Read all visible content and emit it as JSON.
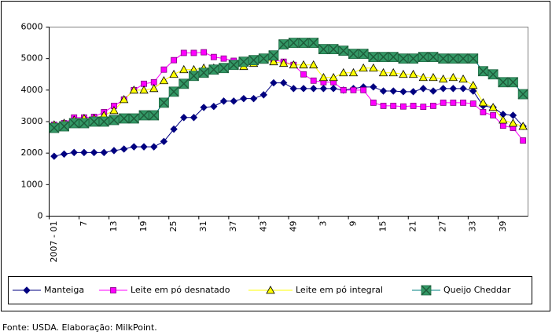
{
  "chart_data": {
    "type": "line",
    "categories": [
      "2007 - 01",
      null,
      null,
      "7",
      null,
      null,
      "13",
      null,
      null,
      "19",
      null,
      null,
      "25",
      null,
      null,
      "31",
      null,
      null,
      "37",
      null,
      null,
      "43",
      null,
      null,
      "49",
      null,
      null,
      "3",
      null,
      null,
      "9",
      null,
      null,
      "15",
      null,
      null,
      "21",
      null,
      null,
      "27",
      null,
      null,
      "33",
      null,
      null,
      "39",
      null,
      null
    ],
    "series": [
      {
        "name": "Manteiga",
        "color": "#000080",
        "marker": "diamond",
        "values": [
          1900,
          1970,
          2020,
          2020,
          2020,
          2020,
          2080,
          2130,
          2200,
          2200,
          2200,
          2370,
          2760,
          3130,
          3130,
          3450,
          3480,
          3650,
          3650,
          3730,
          3730,
          3850,
          4230,
          4230,
          4050,
          4050,
          4050,
          4050,
          4050,
          4000,
          4050,
          4100,
          4100,
          3970,
          3970,
          3950,
          3950,
          4050,
          3970,
          4050,
          4050,
          4050,
          3970,
          3500,
          3450,
          3230,
          3200,
          2850
        ]
      },
      {
        "name": "Leite em pó desnatado",
        "color": "#ff00ff",
        "marker": "square",
        "values": [
          2900,
          2950,
          3130,
          3130,
          3150,
          3300,
          3500,
          3700,
          4000,
          4200,
          4250,
          4650,
          4950,
          5180,
          5180,
          5200,
          5050,
          5000,
          4930,
          4850,
          4900,
          4950,
          4950,
          4900,
          4800,
          4500,
          4300,
          4250,
          4250,
          4000,
          4000,
          4000,
          3600,
          3500,
          3500,
          3480,
          3500,
          3470,
          3500,
          3600,
          3600,
          3600,
          3570,
          3300,
          3200,
          2870,
          2800,
          2400
        ]
      },
      {
        "name": "Leite em pó integral",
        "color": "#ffff00",
        "marker": "triangle",
        "values": [
          2900,
          2950,
          3050,
          3100,
          3100,
          3200,
          3350,
          3700,
          4000,
          4000,
          4050,
          4300,
          4500,
          4650,
          4650,
          4700,
          4700,
          4700,
          4800,
          4750,
          4850,
          4950,
          4900,
          4850,
          4800,
          4800,
          4800,
          4400,
          4400,
          4550,
          4550,
          4700,
          4700,
          4550,
          4550,
          4500,
          4500,
          4400,
          4400,
          4350,
          4400,
          4350,
          4150,
          3600,
          3450,
          3050,
          2950,
          2850
        ]
      },
      {
        "name": "Queijo Cheddar",
        "color": "#008080",
        "marker": "xbox",
        "values": [
          2800,
          2850,
          2950,
          2950,
          3000,
          3000,
          3050,
          3100,
          3100,
          3200,
          3200,
          3600,
          3950,
          4200,
          4450,
          4550,
          4650,
          4700,
          4800,
          4900,
          4950,
          5000,
          5100,
          5450,
          5500,
          5500,
          5500,
          5300,
          5300,
          5250,
          5150,
          5150,
          5050,
          5050,
          5050,
          5000,
          5000,
          5050,
          5050,
          5000,
          5000,
          5000,
          5000,
          4600,
          4500,
          4250,
          4250,
          3870
        ]
      }
    ],
    "ylim": [
      0,
      6000
    ],
    "yticks": [
      0,
      1000,
      2000,
      3000,
      4000,
      5000,
      6000
    ],
    "grid": false,
    "legend": "bottom",
    "source": "Fonte: USDA. Elaboração: MilkPoint."
  }
}
